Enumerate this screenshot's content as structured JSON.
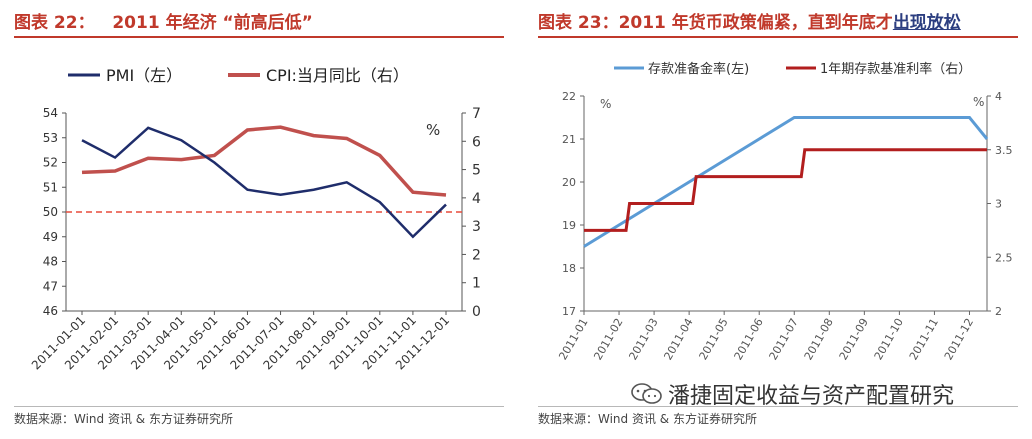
{
  "charts": {
    "left": {
      "title": "图表 22：   2011 年经济 “前高后低”",
      "source": "数据来源：Wind 资讯 & 东方证券研究所"
    },
    "right": {
      "title": "图表 23：2011 年货币政策偏紧，直到年底才",
      "title_highlight": "出现放松",
      "source": "数据来源：Wind 资讯 & 东方证券研究所"
    }
  },
  "watermark": "潘捷固定收益与资产配置研究",
  "colors": {
    "title": "#c0392b",
    "pmi": "#1f2d6b",
    "cpi": "#c0504d",
    "rrr": "#5b9bd5",
    "rate": "#b21e1e",
    "refline": "#e74c3c"
  },
  "chart_data": [
    {
      "type": "line",
      "categories": [
        "2011-01-01",
        "2011-02-01",
        "2011-03-01",
        "2011-04-01",
        "2011-05-01",
        "2011-06-01",
        "2011-07-01",
        "2011-08-01",
        "2011-09-01",
        "2011-10-01",
        "2011-11-01",
        "2011-12-01"
      ],
      "series": [
        {
          "name": "PMI（左）",
          "axis": "left",
          "values": [
            52.9,
            52.2,
            53.4,
            52.9,
            52.0,
            50.9,
            50.7,
            50.9,
            51.2,
            50.4,
            49.0,
            50.3
          ]
        },
        {
          "name": "CPI:当月同比（右）",
          "axis": "right",
          "values": [
            4.9,
            4.95,
            5.4,
            5.35,
            5.5,
            6.4,
            6.5,
            6.2,
            6.1,
            5.5,
            4.2,
            4.1
          ]
        }
      ],
      "ylim_left": [
        46,
        54
      ],
      "ylim_right": [
        0,
        7
      ],
      "yticks_left": [
        46,
        47,
        48,
        49,
        50,
        51,
        52,
        53,
        54
      ],
      "yticks_right": [
        0,
        1,
        2,
        3,
        4,
        5,
        6,
        7
      ],
      "right_axis_unit": "%",
      "reference_line": {
        "axis": "left",
        "value": 50
      },
      "legend_position": "top"
    },
    {
      "type": "line",
      "xticks": [
        "2011-01",
        "2011-02",
        "2011-03",
        "2011-04",
        "2011-05",
        "2011-06",
        "2011-07",
        "2011-08",
        "2011-09",
        "2011-10",
        "2011-11",
        "2011-12"
      ],
      "series": [
        {
          "name": "存款准备金率(左)",
          "axis": "left",
          "step": false,
          "points": [
            [
              0,
              18.5
            ],
            [
              1,
              19.0
            ],
            [
              2,
              19.5
            ],
            [
              3,
              20.0
            ],
            [
              4,
              20.5
            ],
            [
              5,
              21.0
            ],
            [
              6,
              21.5
            ],
            [
              7,
              21.5
            ],
            [
              8,
              21.5
            ],
            [
              9,
              21.5
            ],
            [
              10,
              21.5
            ],
            [
              11,
              21.5
            ],
            [
              11.5,
              21.0
            ]
          ]
        },
        {
          "name": "1年期存款基准利率（右）",
          "axis": "right",
          "step": true,
          "points": [
            [
              0,
              2.75
            ],
            [
              1.2,
              2.75
            ],
            [
              1.3,
              3.0
            ],
            [
              3.1,
              3.0
            ],
            [
              3.2,
              3.25
            ],
            [
              6.2,
              3.25
            ],
            [
              6.3,
              3.5
            ],
            [
              11.5,
              3.5
            ]
          ]
        }
      ],
      "xlim": [
        0,
        11.5
      ],
      "ylim_left": [
        17,
        22
      ],
      "ylim_right": [
        2,
        4
      ],
      "yticks_left": [
        17,
        18,
        19,
        20,
        21,
        22
      ],
      "yticks_right": [
        "2",
        "2.5",
        "3",
        "3.5",
        "4"
      ],
      "left_axis_unit": "%",
      "right_axis_unit": "%",
      "legend_position": "top"
    }
  ]
}
